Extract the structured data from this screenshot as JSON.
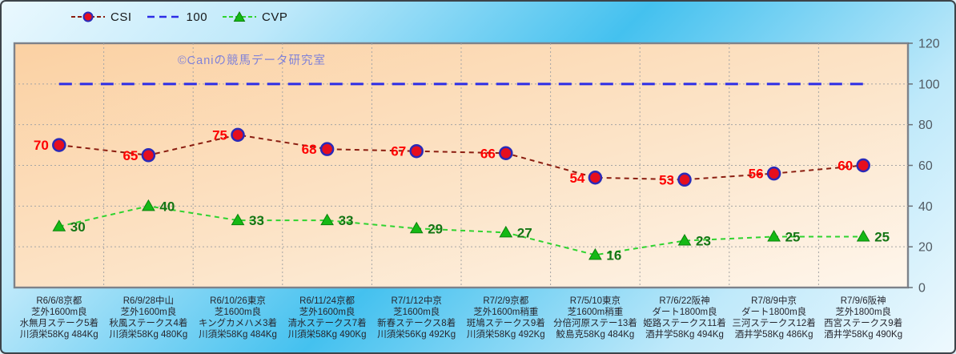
{
  "watermark": "©Caniの競馬データ研究室",
  "legend": {
    "csi": {
      "label": "CSI"
    },
    "hundred": {
      "label": "100"
    },
    "cvp": {
      "label": "CVP"
    }
  },
  "chart_data": {
    "type": "line",
    "title": "",
    "xlabel": "",
    "ylabel": "",
    "ylim": [
      0,
      120
    ],
    "yticks": [
      0,
      20,
      40,
      60,
      80,
      100,
      120
    ],
    "grid": true,
    "legend_position": "top",
    "y_axis_side": "right",
    "categories": [
      [
        "R6/6/8京都",
        "芝外1600m良",
        "水無月ステーク5着",
        "川須栄58Kg 484Kg"
      ],
      [
        "R6/9/28中山",
        "芝外1600m良",
        "秋風ステークス4着",
        "川須栄58Kg 480Kg"
      ],
      [
        "R6/10/26東京",
        "芝1600m良",
        "キングカメハメ3着",
        "川須栄58Kg 484Kg"
      ],
      [
        "R6/11/24京都",
        "芝外1600m良",
        "清水ステークス7着",
        "川須栄58Kg 490Kg"
      ],
      [
        "R7/1/12中京",
        "芝1600m良",
        "新春ステークス8着",
        "川須栄56Kg 492Kg"
      ],
      [
        "R7/2/9京都",
        "芝外1600m稍重",
        "斑鳩ステークス9着",
        "川須栄58Kg 492Kg"
      ],
      [
        "R7/5/10東京",
        "芝1600m稍重",
        "分倍河原ステー13着",
        "鮫島克58Kg 484Kg"
      ],
      [
        "R7/6/22阪神",
        "ダート1800m良",
        "姫路ステークス11着",
        "酒井学58Kg 494Kg"
      ],
      [
        "R7/8/9中京",
        "ダート1800m良",
        "三河ステークス12着",
        "酒井学58Kg 486Kg"
      ],
      [
        "R7/9/6阪神",
        "芝外1800m良",
        "西宮ステークス9着",
        "酒井学58Kg 490Kg"
      ]
    ],
    "series": [
      {
        "name": "CSI",
        "values": [
          70,
          65,
          75,
          68,
          67,
          66,
          54,
          53,
          56,
          60
        ],
        "marker": "circle",
        "line_color": "#8b1d10",
        "marker_fill": "#e60e1e",
        "marker_edge": "#2a2ab8",
        "label_color": "#fe0000",
        "label_side": "left",
        "show_labels": true
      },
      {
        "name": "100",
        "values": [
          100,
          100,
          100,
          100,
          100,
          100,
          100,
          100,
          100,
          100
        ],
        "marker": "none",
        "line_color": "#2d2de6",
        "show_labels": false
      },
      {
        "name": "CVP",
        "values": [
          30,
          40,
          33,
          33,
          29,
          27,
          16,
          23,
          25,
          25
        ],
        "marker": "triangle",
        "line_color": "#2fd32f",
        "marker_fill": "#15b915",
        "marker_edge": "#0c830c",
        "label_color": "#147514",
        "label_side": "right",
        "show_labels": true
      }
    ],
    "axis_text_color": "#525b63",
    "x_label_color": "#26262e",
    "gridline_color": "#a5a5a5",
    "plot_border_color": "#7d828a"
  }
}
